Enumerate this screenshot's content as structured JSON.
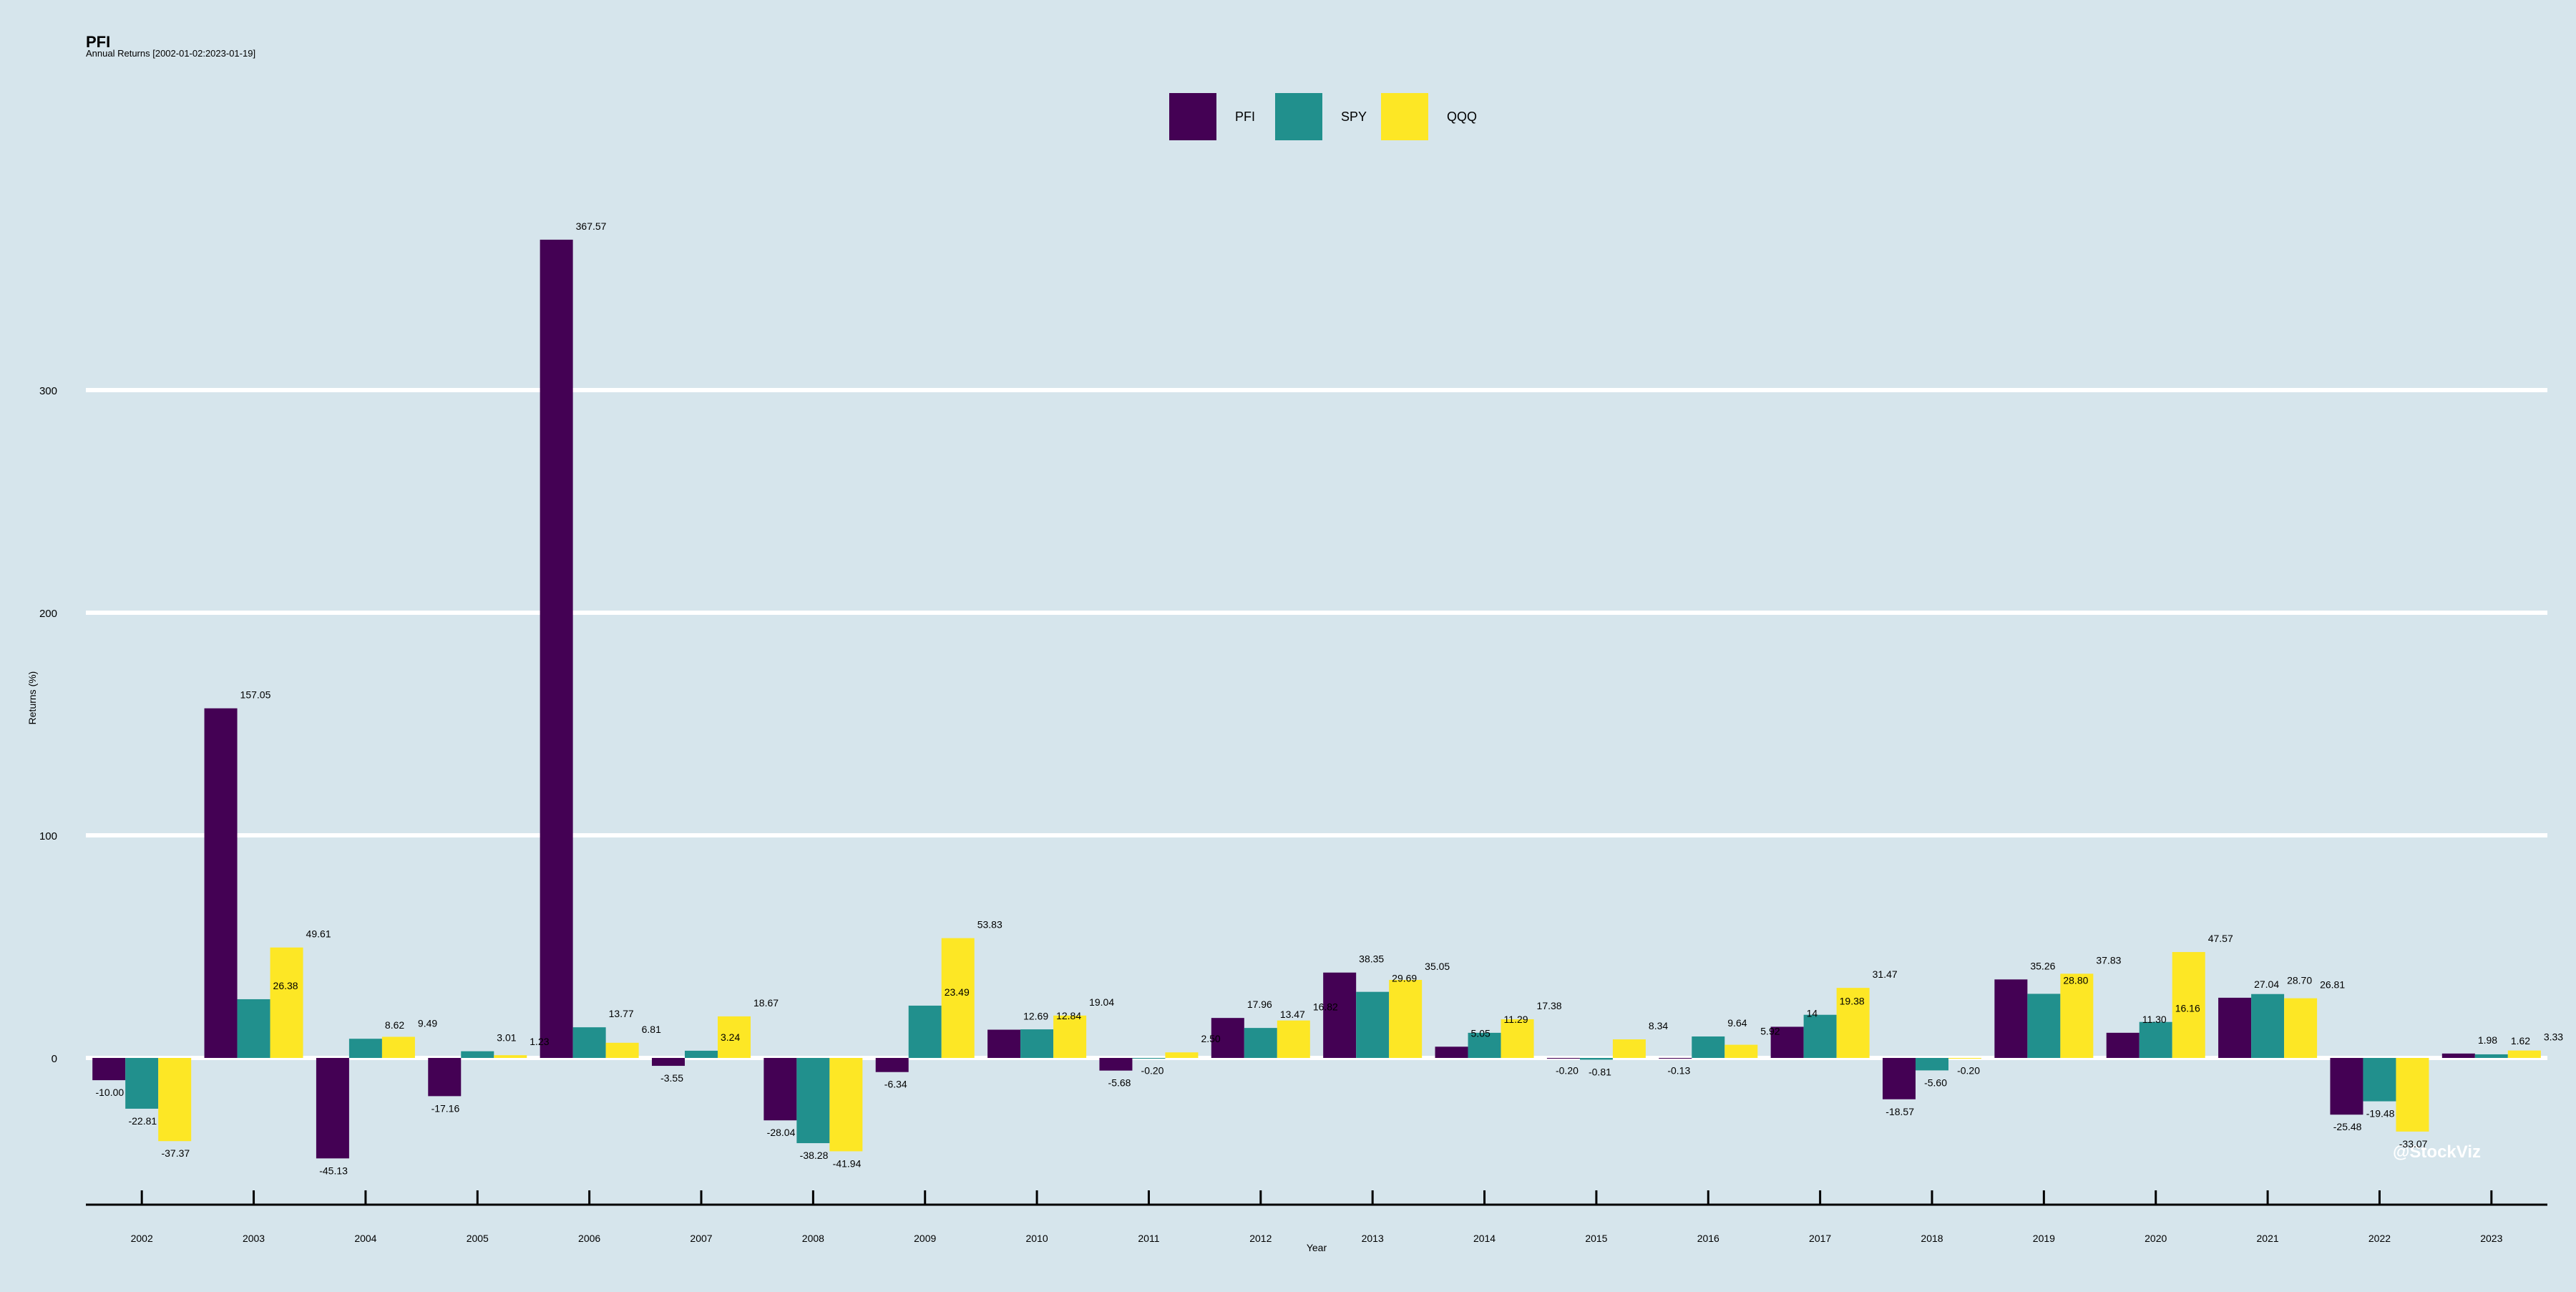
{
  "chart_data": {
    "type": "bar",
    "title": "PFI",
    "subtitle": "Annual Returns [2002-01-02:2023-01-19]",
    "xlabel": "Year",
    "ylabel": "Returns (%)",
    "ylim": [
      -66,
      370
    ],
    "yticks": [
      0,
      100,
      200,
      300
    ],
    "grid": true,
    "legend_position": "top-center",
    "watermark": "@StockViz",
    "categories": [
      "2002",
      "2003",
      "2004",
      "2005",
      "2006",
      "2007",
      "2008",
      "2009",
      "2010",
      "2011",
      "2012",
      "2013",
      "2014",
      "2015",
      "2016",
      "2017",
      "2018",
      "2019",
      "2020",
      "2021",
      "2022",
      "2023"
    ],
    "series": [
      {
        "name": "PFI",
        "color": "#440154",
        "values": [
          -10.0,
          157.05,
          -45.13,
          -17.16,
          367.57,
          -3.55,
          -28.04,
          -6.34,
          12.69,
          -5.68,
          17.96,
          38.35,
          5.05,
          -0.2,
          -0.13,
          14.0,
          -18.57,
          35.26,
          11.3,
          27.04,
          -25.48,
          1.98
        ],
        "labels": [
          "-10.00",
          "157.05",
          "-45.13",
          "-17.16",
          "367.57",
          "-3.55",
          "-28.04",
          "-6.34",
          "12.69",
          "-5.68",
          "17.96",
          "38.35",
          "5.05",
          "-0.20",
          "-0.13",
          "14",
          "-18.57",
          "35.26",
          "11.30",
          "27.04",
          "-25.48",
          "1.98"
        ]
      },
      {
        "name": "SPY",
        "color": "#21908d",
        "values": [
          -22.81,
          26.38,
          8.62,
          3.01,
          13.77,
          3.24,
          -38.28,
          23.49,
          12.84,
          -0.2,
          13.47,
          29.69,
          11.29,
          -0.81,
          9.64,
          19.38,
          -5.6,
          28.8,
          16.16,
          28.7,
          -19.48,
          1.62
        ],
        "labels": [
          "-22.81",
          "26.38",
          "8.62",
          "3.01",
          "13.77",
          "3.24",
          "-38.28",
          "23.49",
          "12.84",
          "-0.20",
          "13.47",
          "29.69",
          "11.29",
          "-0.81",
          "9.64",
          "19.38",
          "-5.60",
          "28.80",
          "16.16",
          "28.70",
          "-19.48",
          "1.62"
        ]
      },
      {
        "name": "QQQ",
        "color": "#fde725",
        "values": [
          -37.37,
          49.61,
          9.49,
          1.23,
          6.81,
          18.67,
          -41.94,
          53.83,
          19.04,
          2.5,
          16.82,
          35.05,
          17.38,
          8.34,
          5.92,
          31.47,
          -0.2,
          37.83,
          47.57,
          26.81,
          -33.07,
          3.33
        ],
        "labels": [
          "-37.37",
          "49.61",
          "9.49",
          "1.23",
          "6.81",
          "18.67",
          "-41.94",
          "53.83",
          "19.04",
          "2.50",
          "16.82",
          "35.05",
          "17.38",
          "8.34",
          "5.92",
          "31.47",
          "-0.20",
          "37.83",
          "47.57",
          "26.81",
          "-33.07",
          "3.33"
        ]
      }
    ]
  }
}
